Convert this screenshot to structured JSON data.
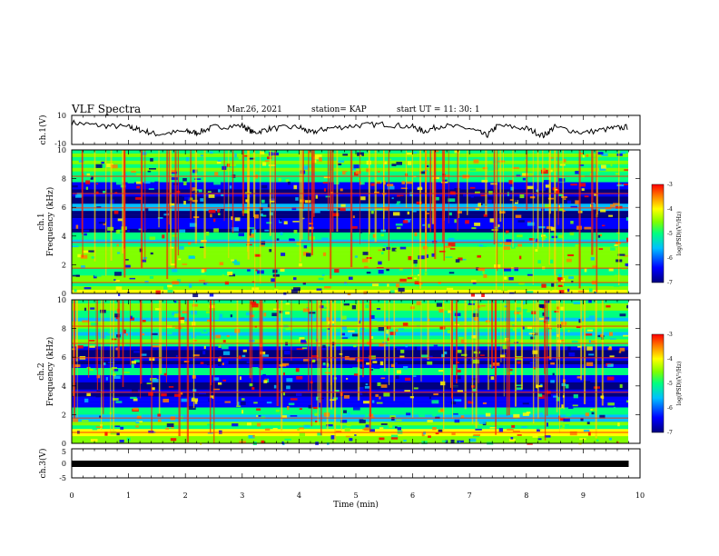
{
  "header": {
    "title": "VLF Spectra",
    "date": "Mar.26, 2021",
    "station": "station= KAP",
    "start": "start  UT =   11: 30: 1"
  },
  "chart_data": [
    {
      "type": "line",
      "name": "ch1-waveform",
      "ylabel": "ch.1(V)",
      "xlim": [
        0,
        10
      ],
      "ylim": [
        -10,
        10
      ],
      "yticks": [
        "10",
        "-10"
      ],
      "x": [
        0,
        0.5,
        1,
        1.2,
        1.5,
        2,
        2.2,
        2.5,
        3,
        3.2,
        3.5,
        4,
        4.2,
        4.5,
        5,
        5.5,
        6,
        6.2,
        6.5,
        7,
        7.3,
        7.5,
        8,
        8.3,
        8.5,
        9,
        9.5,
        9.8
      ],
      "y": [
        5,
        3,
        2,
        0,
        -3,
        -1,
        -2,
        2,
        3,
        -2,
        1,
        2,
        -2,
        1,
        3,
        4,
        2,
        -1,
        3,
        1,
        -4,
        3,
        1,
        -4,
        2,
        -2,
        1,
        2
      ]
    },
    {
      "type": "heatmap",
      "name": "ch1-spectrogram",
      "ylabel": "ch.1",
      "ylabel2": "Frequency (kHz)",
      "xlim": [
        0,
        10
      ],
      "ylim": [
        0,
        10
      ],
      "yticks": [
        "0",
        "2",
        "4",
        "6",
        "8",
        "10"
      ],
      "colorbar": {
        "min": -7,
        "max": -3,
        "ticks": [
          "-3",
          "-4",
          "-5",
          "-6",
          "-7"
        ],
        "label": "log(PSD)(V²/Hz)"
      }
    },
    {
      "type": "heatmap",
      "name": "ch2-spectrogram",
      "ylabel": "ch.2",
      "ylabel2": "Frequency (kHz)",
      "xlim": [
        0,
        10
      ],
      "ylim": [
        0,
        10
      ],
      "yticks": [
        "0",
        "2",
        "4",
        "6",
        "8",
        "10"
      ],
      "colorbar": {
        "min": -7,
        "max": -3,
        "ticks": [
          "-3",
          "-4",
          "-5",
          "-6",
          "-7"
        ],
        "label": "log(PSD)(V²/Hz)"
      }
    },
    {
      "type": "line",
      "name": "ch3-waveform",
      "ylabel": "ch.3(V)",
      "xlim": [
        0,
        10
      ],
      "ylim": [
        -5,
        5
      ],
      "yticks": [
        "5",
        "0",
        "-5"
      ],
      "x": [
        0,
        9.8
      ],
      "y": [
        -0.5,
        -0.5
      ]
    }
  ],
  "xaxis": {
    "label": "Time (min)",
    "ticks": [
      "0",
      "1",
      "2",
      "3",
      "4",
      "5",
      "6",
      "7",
      "8",
      "9",
      "10"
    ]
  },
  "colors": {
    "scale": [
      "#00007f",
      "#0000ff",
      "#00c0ff",
      "#00ff80",
      "#80ff00",
      "#ffff00",
      "#ff8000",
      "#ff0000"
    ],
    "frame": "#000000"
  }
}
